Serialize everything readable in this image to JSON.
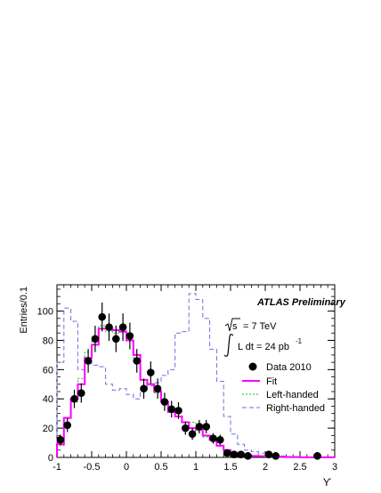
{
  "chart_data": {
    "type": "histogram",
    "title": "",
    "xlabel": "ϒ",
    "ylabel": "Entries/0.1",
    "xlim": [
      -1,
      3
    ],
    "ylim": [
      0,
      118
    ],
    "xticks": [
      -1,
      -0.5,
      0,
      0.5,
      1,
      1.5,
      2,
      2.5,
      3
    ],
    "xtick_labels": [
      "-1",
      "-0.5",
      "0",
      "0.5",
      "1",
      "1.5",
      "2",
      "2.5",
      "3"
    ],
    "yticks": [
      0,
      20,
      40,
      60,
      80,
      100
    ],
    "ytick_labels": [
      "0",
      "20",
      "40",
      "60",
      "80",
      "100"
    ],
    "annotations": {
      "experiment": "ATLAS Preliminary",
      "energy_sqrt": "s",
      "energy_value": "= 7 TeV",
      "lumi_text": "L dt = 24 pb",
      "lumi_exp": "-1"
    },
    "legend_position": "right",
    "bin_edges": [
      -1.0,
      -0.9,
      -0.8,
      -0.7,
      -0.6,
      -0.5,
      -0.4,
      -0.3,
      -0.2,
      -0.1,
      0.0,
      0.1,
      0.2,
      0.3,
      0.4,
      0.5,
      0.6,
      0.7,
      0.8,
      0.9,
      1.0,
      1.1,
      1.2,
      1.3,
      1.4,
      1.5,
      1.6,
      1.7,
      1.8,
      1.9,
      2.0,
      2.1,
      2.2,
      2.3,
      2.4,
      2.5,
      2.6,
      2.7,
      2.8,
      2.9,
      3.0
    ],
    "series": [
      {
        "name": "Data 2010",
        "style": "points",
        "color": "#000000",
        "x": [
          -0.95,
          -0.85,
          -0.75,
          -0.65,
          -0.55,
          -0.45,
          -0.35,
          -0.25,
          -0.15,
          -0.05,
          0.05,
          0.15,
          0.25,
          0.35,
          0.45,
          0.55,
          0.65,
          0.75,
          0.85,
          0.95,
          1.05,
          1.15,
          1.25,
          1.35,
          1.45,
          1.55,
          1.65,
          1.75,
          2.05,
          2.15,
          2.75
        ],
        "y": [
          12,
          22,
          40,
          44,
          66,
          81,
          96,
          89,
          81,
          89,
          83,
          66,
          47,
          58,
          47,
          38,
          33,
          32,
          20,
          16,
          21,
          21,
          13,
          12,
          3,
          2,
          2,
          1,
          2,
          1,
          1
        ],
        "yerr": [
          3.5,
          4.7,
          6.3,
          6.6,
          8.1,
          9.0,
          9.8,
          9.4,
          9.0,
          9.4,
          9.1,
          8.1,
          6.9,
          7.6,
          6.9,
          6.2,
          5.7,
          5.7,
          4.5,
          4.0,
          4.6,
          4.6,
          3.6,
          3.5,
          1.7,
          1.4,
          1.4,
          1.0,
          1.4,
          1.0,
          1.0
        ]
      },
      {
        "name": "Fit",
        "style": "step",
        "color": "#ff00ff",
        "values": [
          9,
          27,
          40,
          50,
          68,
          77,
          88,
          88,
          87,
          86,
          80,
          70,
          53,
          50,
          45,
          38,
          31,
          28,
          24,
          20,
          19,
          15,
          12,
          8,
          5,
          3,
          2,
          1.5,
          1,
          0.8,
          0.6,
          0.4,
          0.3,
          0.2,
          0.2,
          0.1,
          0.1,
          0.1,
          0.1,
          0.1
        ]
      },
      {
        "name": "Left-handed",
        "style": "step",
        "color": "#00cc00",
        "values": [
          8,
          27,
          38,
          54,
          72,
          80,
          90,
          86,
          85,
          86,
          80,
          68,
          53,
          50,
          44,
          37,
          31,
          28,
          24,
          24,
          18,
          14,
          12,
          8,
          5,
          3,
          2,
          1.5,
          1,
          0.8,
          0.6,
          0.4,
          0.3,
          0.2,
          0.2,
          0.1,
          0.1,
          0.1,
          0.1,
          0.1
        ]
      },
      {
        "name": "Right-handed",
        "style": "step",
        "color": "#6f6fe0",
        "values": [
          65,
          102,
          93,
          60,
          67,
          63,
          62,
          50,
          46,
          47,
          43,
          40,
          46,
          49,
          51,
          56,
          60,
          85,
          86,
          112,
          108,
          95,
          74,
          52,
          28,
          16,
          9,
          5,
          4,
          3,
          2,
          1,
          1,
          0.5,
          0.5,
          0.3,
          0.3,
          0.3,
          0.3,
          0.3
        ]
      }
    ]
  }
}
